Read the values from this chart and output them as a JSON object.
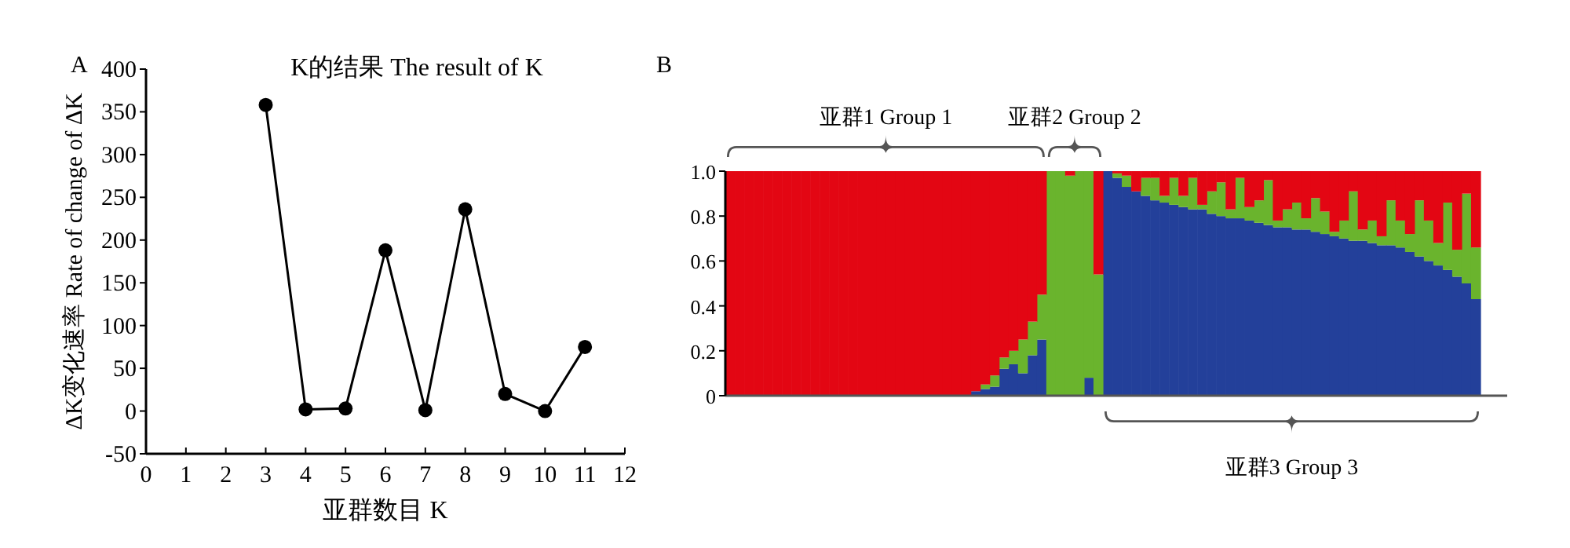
{
  "chart_data": [
    {
      "type": "line",
      "title": "K的结果 The result of K",
      "xlabel": "亚群数目 K",
      "ylabel": "ΔK变化速率 Rate of change of ΔK",
      "annotations": [
        "A"
      ],
      "x": [
        3,
        4,
        5,
        6,
        7,
        8,
        9,
        10,
        11
      ],
      "series": [
        {
          "color": "#000000",
          "values": [
            358,
            2,
            3,
            188,
            1,
            236,
            20,
            0,
            75
          ]
        }
      ],
      "marker": "circle",
      "line_style": "solid",
      "xlim": [
        0,
        12
      ],
      "xticks": [
        0,
        1,
        2,
        3,
        4,
        5,
        6,
        7,
        8,
        9,
        10,
        11,
        12
      ],
      "ylim": [
        -50,
        400
      ],
      "yticks": [
        -50,
        0,
        50,
        100,
        150,
        200,
        250,
        300,
        350,
        400
      ]
    },
    {
      "type": "bar",
      "stacked": true,
      "tick_labels": "y",
      "annotations": [
        "B",
        "亚群1 Group 1",
        "亚群2 Group 2",
        "亚群3 Group 3"
      ],
      "categories": [
        null,
        null,
        null,
        null,
        null,
        null,
        null,
        null,
        null,
        null,
        null,
        null,
        null,
        null,
        null,
        null,
        null,
        null,
        null,
        null,
        null,
        null,
        null,
        null,
        null,
        null,
        null,
        null,
        null,
        null,
        null,
        null,
        null,
        null,
        null,
        null,
        null,
        null,
        null,
        null,
        null,
        null,
        null,
        null,
        null,
        null,
        null,
        null,
        null,
        null,
        null,
        null,
        null,
        null,
        null,
        null,
        null,
        null,
        null,
        null,
        null,
        null,
        null,
        null,
        null,
        null,
        null,
        null,
        null,
        null,
        null,
        null,
        null,
        null,
        null,
        null,
        null,
        null,
        null,
        null
      ],
      "series": [
        {
          "color": "#23409a",
          "values": [
            0,
            0,
            0,
            0,
            0,
            0,
            0,
            0,
            0,
            0,
            0,
            0,
            0,
            0,
            0,
            0,
            0,
            0,
            0,
            0,
            0,
            0,
            0,
            0,
            0,
            0,
            0.02,
            0.03,
            0.04,
            0.12,
            0.14,
            0.1,
            0.18,
            0.25,
            0,
            0,
            0,
            0,
            0.08,
            0,
            1.0,
            0.97,
            0.93,
            0.91,
            0.89,
            0.87,
            0.86,
            0.85,
            0.84,
            0.83,
            0.83,
            0.81,
            0.8,
            0.79,
            0.79,
            0.78,
            0.77,
            0.76,
            0.75,
            0.75,
            0.74,
            0.74,
            0.73,
            0.72,
            0.71,
            0.7,
            0.69,
            0.69,
            0.68,
            0.67,
            0.67,
            0.66,
            0.64,
            0.62,
            0.6,
            0.58,
            0.56,
            0.53,
            0.5,
            0.43
          ]
        },
        {
          "color": "#6ab42d",
          "values": [
            0,
            0,
            0,
            0,
            0,
            0,
            0,
            0,
            0,
            0,
            0,
            0,
            0,
            0,
            0,
            0,
            0,
            0,
            0,
            0,
            0,
            0,
            0,
            0,
            0,
            0,
            0,
            0.02,
            0.05,
            0.05,
            0.06,
            0.15,
            0.15,
            0.2,
            1,
            1,
            0.98,
            1,
            0.92,
            0.54,
            0,
            0.02,
            0.05,
            0,
            0.08,
            0.1,
            0.03,
            0.12,
            0.05,
            0.14,
            0.02,
            0.1,
            0.15,
            0.04,
            0.18,
            0.06,
            0.1,
            0.2,
            0.03,
            0.08,
            0.12,
            0.05,
            0.15,
            0.1,
            0.02,
            0.08,
            0.22,
            0.05,
            0.1,
            0.04,
            0.2,
            0.12,
            0.08,
            0.25,
            0.18,
            0.1,
            0.3,
            0.12,
            0.4,
            0.23
          ]
        },
        {
          "color": "#e30613",
          "values": [
            1,
            1,
            1,
            1,
            1,
            1,
            1,
            1,
            1,
            1,
            1,
            1,
            1,
            1,
            1,
            1,
            1,
            1,
            1,
            1,
            1,
            1,
            1,
            1,
            1,
            1,
            0.98,
            0.95,
            0.91,
            0.83,
            0.8,
            0.75,
            0.67,
            0.55,
            0,
            0,
            0.02,
            0,
            0,
            0.46,
            0,
            0.01,
            0.02,
            0.09,
            0.03,
            0.03,
            0.11,
            0.03,
            0.11,
            0.03,
            0.15,
            0.09,
            0.05,
            0.17,
            0.03,
            0.16,
            0.13,
            0.04,
            0.22,
            0.17,
            0.14,
            0.21,
            0.12,
            0.18,
            0.27,
            0.22,
            0.09,
            0.26,
            0.22,
            0.29,
            0.13,
            0.22,
            0.28,
            0.13,
            0.22,
            0.32,
            0.14,
            0.35,
            0.1,
            0.34
          ]
        }
      ],
      "ylim": [
        0,
        1
      ],
      "yticks": [
        0,
        0.2,
        0.4,
        0.6,
        0.8,
        {
          "value": 1,
          "label": "1.0"
        }
      ]
    }
  ]
}
